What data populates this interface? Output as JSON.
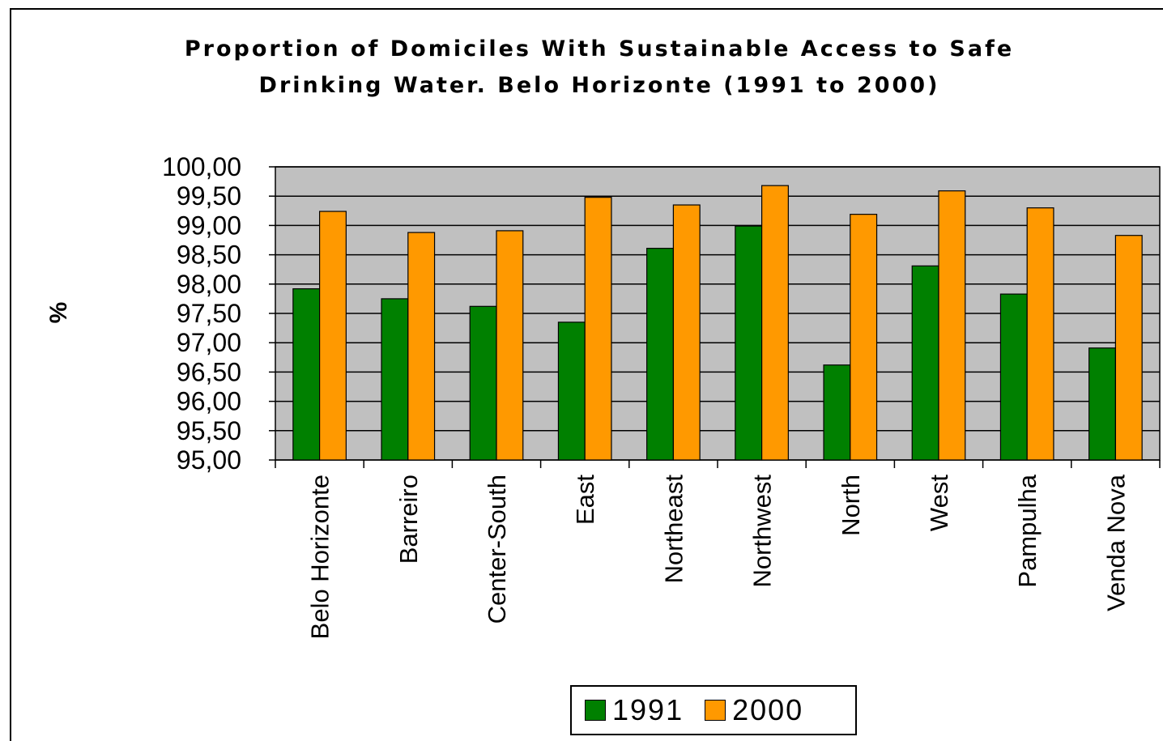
{
  "chart_data": {
    "type": "bar",
    "title": "Proportion of Domiciles With Sustainable Access to Safe\nDrinking Water. Belo Horizonte (1991 to 2000)",
    "ylabel": "%",
    "xlabel": "",
    "ylim": [
      95,
      100
    ],
    "yticks": [
      "95,00",
      "95,50",
      "96,00",
      "96,50",
      "97,00",
      "97,50",
      "98,00",
      "98,50",
      "99,00",
      "99,50",
      "100,00"
    ],
    "grid": true,
    "legend_position": "bottom",
    "categories": [
      "Belo Horizonte",
      "Barreiro",
      "Center-South",
      "East",
      "Northeast",
      "Northwest",
      "North",
      "West",
      "Pampulha",
      "Venda Nova"
    ],
    "series": [
      {
        "name": "1991",
        "color": "#008000",
        "values": [
          97.92,
          97.75,
          97.62,
          97.35,
          98.61,
          98.99,
          96.62,
          98.31,
          97.83,
          96.91
        ]
      },
      {
        "name": "2000",
        "color": "#ff9900",
        "values": [
          99.24,
          98.88,
          98.91,
          99.48,
          99.35,
          99.68,
          99.19,
          99.59,
          99.3,
          98.83
        ]
      }
    ],
    "plot_background": "#c0c0c0"
  }
}
